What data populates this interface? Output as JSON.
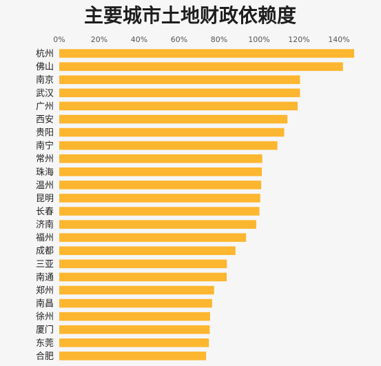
{
  "chart_data": {
    "type": "bar",
    "orientation": "horizontal",
    "title": "主要城市土地财政依赖度",
    "xlim": [
      0,
      150
    ],
    "x_ticks": [
      "0%",
      "20%",
      "40%",
      "60%",
      "80%",
      "100%",
      "120%",
      "140%"
    ],
    "x_tick_values": [
      0,
      20,
      40,
      60,
      80,
      100,
      120,
      140
    ],
    "axis_position": "top",
    "grid": false,
    "bar_color": "#fdb62f",
    "categories": [
      "杭州",
      "佛山",
      "南京",
      "武汉",
      "广州",
      "西安",
      "贵阳",
      "南宁",
      "常州",
      "珠海",
      "温州",
      "昆明",
      "长春",
      "济南",
      "福州",
      "成都",
      "三亚",
      "南通",
      "郑州",
      "南昌",
      "徐州",
      "厦门",
      "东莞",
      "合肥"
    ],
    "values": [
      147.6,
      142.0,
      120.5,
      120.5,
      119.3,
      114.2,
      112.6,
      109.2,
      101.6,
      101.4,
      101.1,
      100.6,
      100.2,
      98.6,
      93.5,
      88.2,
      83.9,
      83.8,
      77.5,
      76.5,
      75.5,
      75.3,
      74.9,
      73.5
    ]
  }
}
